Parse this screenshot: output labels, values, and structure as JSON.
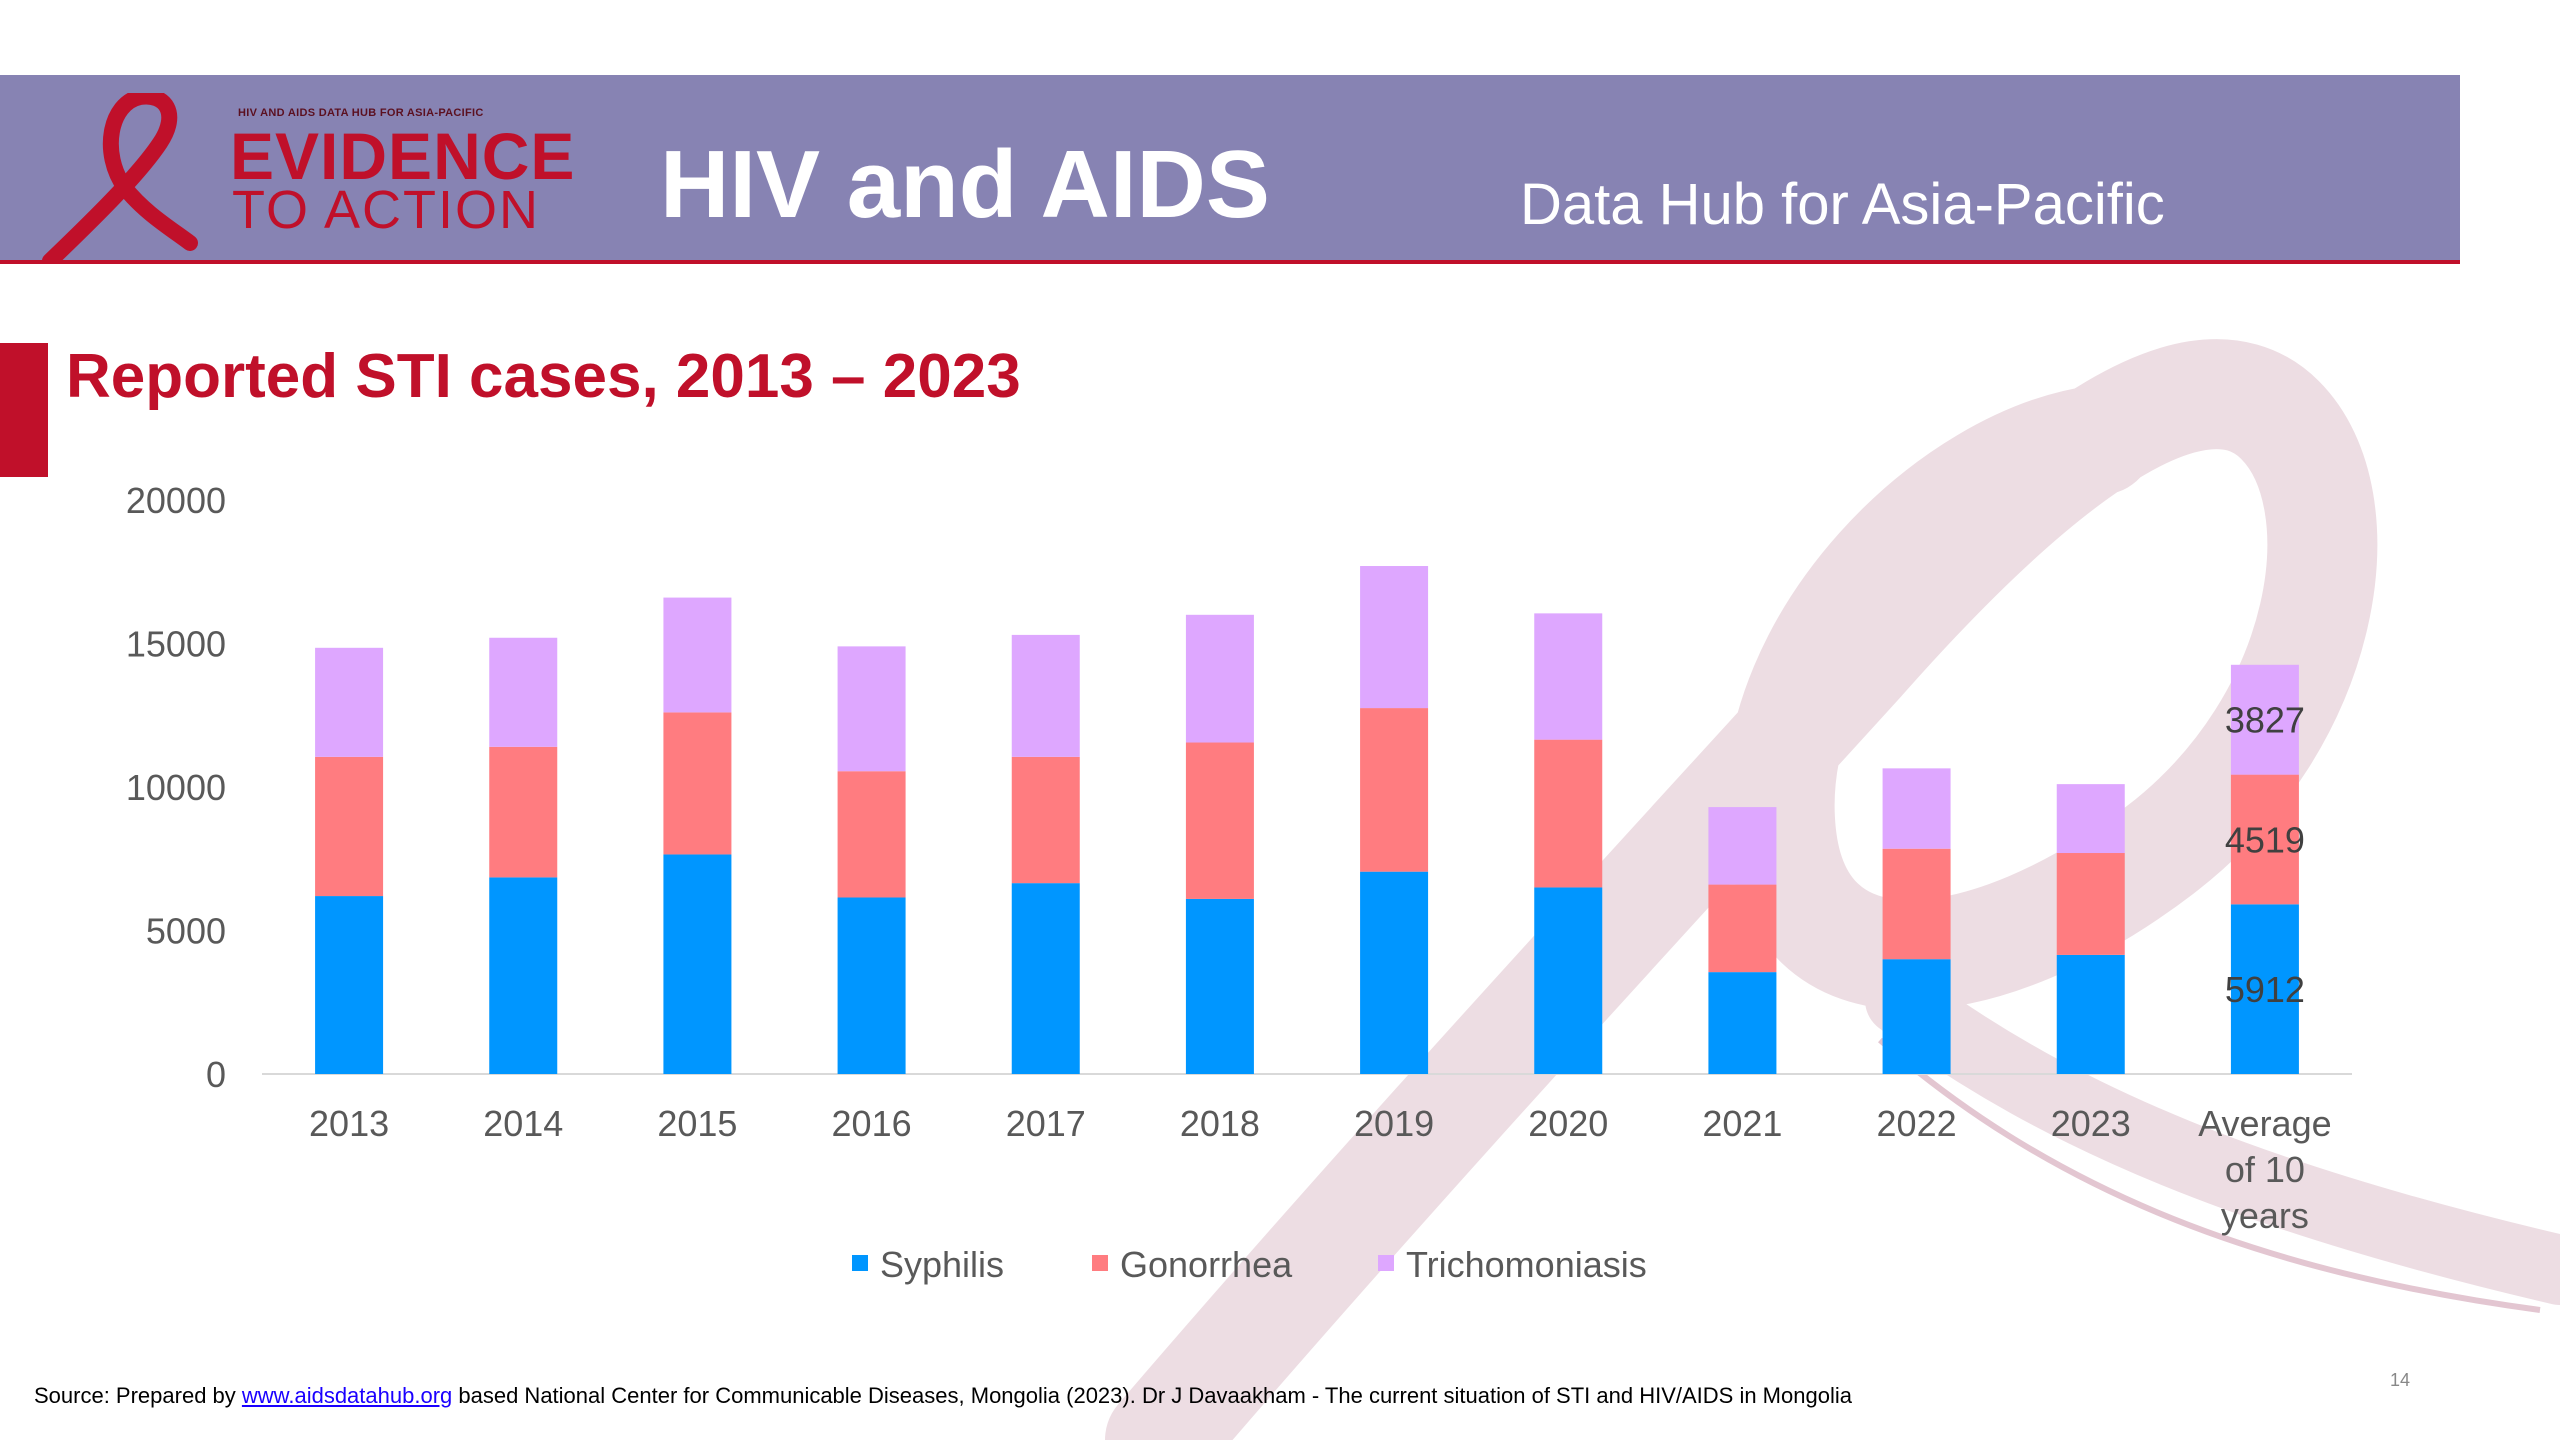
{
  "header": {
    "logo_small": "HIV AND AIDS DATA HUB FOR ASIA-PACIFIC",
    "logo_big": "EVIDENCE",
    "logo_sub": "TO ACTION",
    "title": "HIV and AIDS",
    "subtitle": "Data Hub for Asia-Pacific"
  },
  "slide": {
    "title": "Reported STI cases, 2013 – 2023"
  },
  "footer": {
    "prefix": "Source: Prepared by ",
    "link": "www.aidsdatahub.org",
    "suffix": "  based National Center for Communicable Diseases, Mongolia (2023). Dr J Davaakham - The current situation of STI and HIV/AIDS in Mongolia",
    "page_number": "14"
  },
  "colors": {
    "brand_red": "#c0102a",
    "banner": "#8783b3",
    "syphilis": "#0096ff",
    "gonorrhea": "#ff7c80",
    "trichomoniasis": "#dea7ff"
  },
  "chart_data": {
    "type": "bar",
    "stacked": true,
    "categories": [
      "2013",
      "2014",
      "2015",
      "2016",
      "2017",
      "2018",
      "2019",
      "2020",
      "2021",
      "2022",
      "2023",
      "Average of 10 years"
    ],
    "series": [
      {
        "name": "Syphilis",
        "values": [
          6200,
          6850,
          7650,
          6150,
          6650,
          6100,
          7050,
          6500,
          3550,
          4000,
          4150,
          5912
        ]
      },
      {
        "name": "Gonorrhea",
        "values": [
          4850,
          4550,
          4950,
          4400,
          4400,
          5450,
          5700,
          5150,
          3050,
          3850,
          3550,
          4519
        ]
      },
      {
        "name": "Trichomoniasis",
        "values": [
          3800,
          3800,
          4000,
          4350,
          4250,
          4450,
          4950,
          4400,
          2700,
          2800,
          2400,
          3827
        ]
      }
    ],
    "data_labels": {
      "category": "Average of 10 years",
      "values": [
        "5912",
        "4519",
        "3827"
      ]
    },
    "ylim": [
      0,
      20000
    ],
    "yticks": [
      "0",
      "5000",
      "10000",
      "15000",
      "20000"
    ],
    "legend": "bottom",
    "grid": false
  }
}
